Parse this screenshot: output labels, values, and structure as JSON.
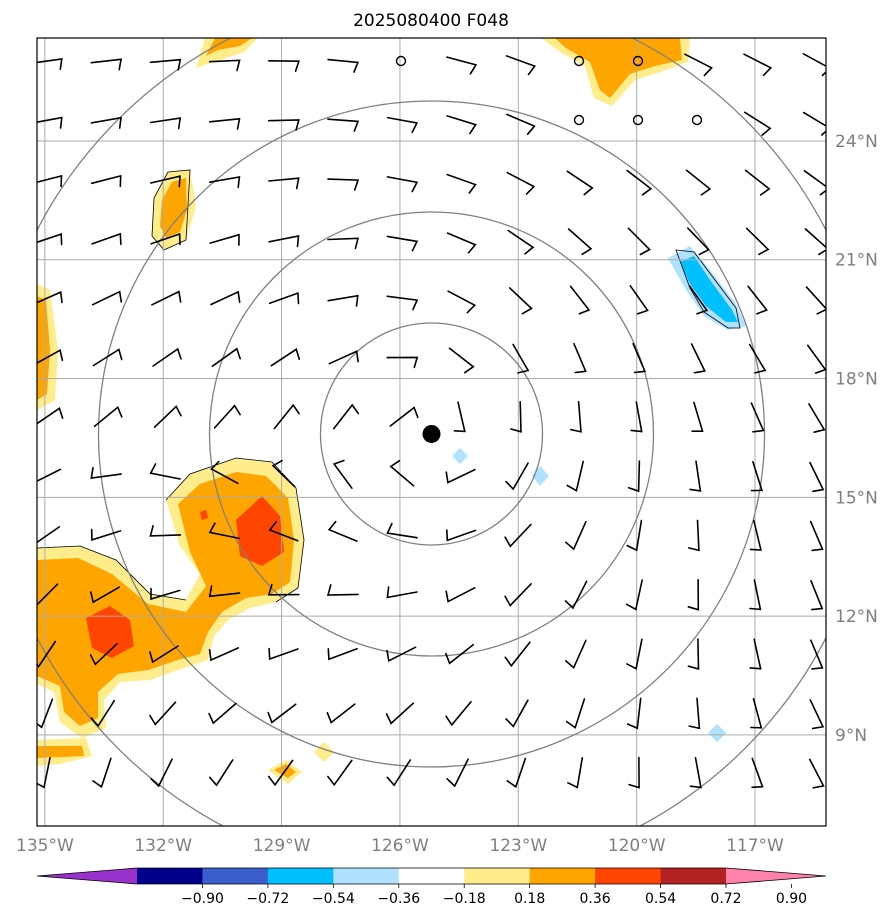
{
  "title": "2025080400 F048",
  "map": {
    "lon_range": [
      -135.2,
      -115.2
    ],
    "lat_range": [
      6.7,
      26.6
    ],
    "lon_ticks": [
      "135°W",
      "132°W",
      "129°W",
      "126°W",
      "123°W",
      "120°W",
      "117°W"
    ],
    "lat_ticks": [
      "24°N",
      "21°N",
      "18°N",
      "15°N",
      "12°N",
      "9°N"
    ],
    "gridlines": true,
    "center_marker": {
      "lon": -125.2,
      "lat": 16.6,
      "color": "#000000"
    },
    "range_rings": 4,
    "field": "wind barbs with shaded contour field"
  },
  "colorbar": {
    "levels": [
      "−0.90",
      "−0.72",
      "−0.54",
      "−0.36",
      "−0.18",
      "0.18",
      "0.36",
      "0.54",
      "0.72",
      "0.90"
    ],
    "colors": [
      "#9932cc",
      "#00008b",
      "#3a5fcd",
      "#00bfff",
      "#b0e2ff",
      "#ffffff",
      "#ffec8b",
      "#ffa500",
      "#ff4500",
      "#b22222",
      "#ff82ab"
    ]
  }
}
